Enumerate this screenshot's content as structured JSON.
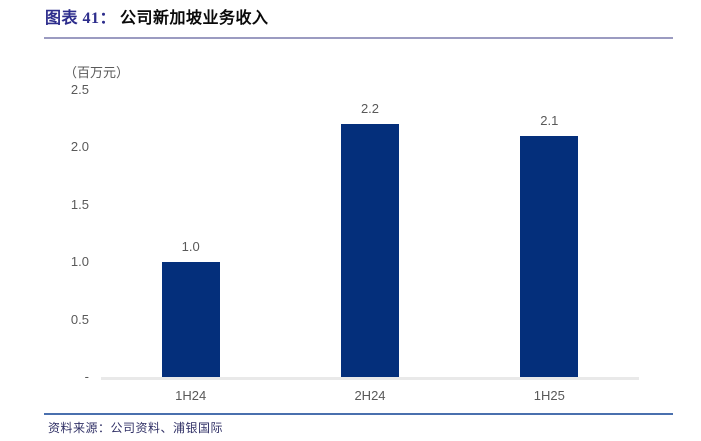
{
  "header": {
    "title_prefix": "图表 41：",
    "title_text": "公司新加坡业务收入"
  },
  "chart_data": {
    "type": "bar",
    "title": "图表 41：公司新加坡业务收入",
    "unit_label": "（百万元）",
    "categories": [
      "1H24",
      "2H24",
      "1H25"
    ],
    "values": [
      1.0,
      2.2,
      2.1
    ],
    "value_labels": [
      "1.0",
      "2.2",
      "2.1"
    ],
    "y_ticks": [
      "2.5",
      "2.0",
      "1.5",
      "1.0",
      "0.5",
      "-"
    ],
    "y_tick_values": [
      2.5,
      2.0,
      1.5,
      1.0,
      0.5,
      0
    ],
    "ylim": [
      0,
      2.5
    ],
    "grid": false,
    "legend": "none",
    "bar_color": "#042F7B",
    "label_color": "#595959"
  },
  "footer": {
    "source": "资料来源：公司资料、浦银国际"
  },
  "colors": {
    "title_accent": "#2D2D8C",
    "top_rule": "#9B9BC1",
    "footer_rule": "#4A70AE",
    "baseline": "#E9E9E9",
    "source_text": "#323267"
  }
}
